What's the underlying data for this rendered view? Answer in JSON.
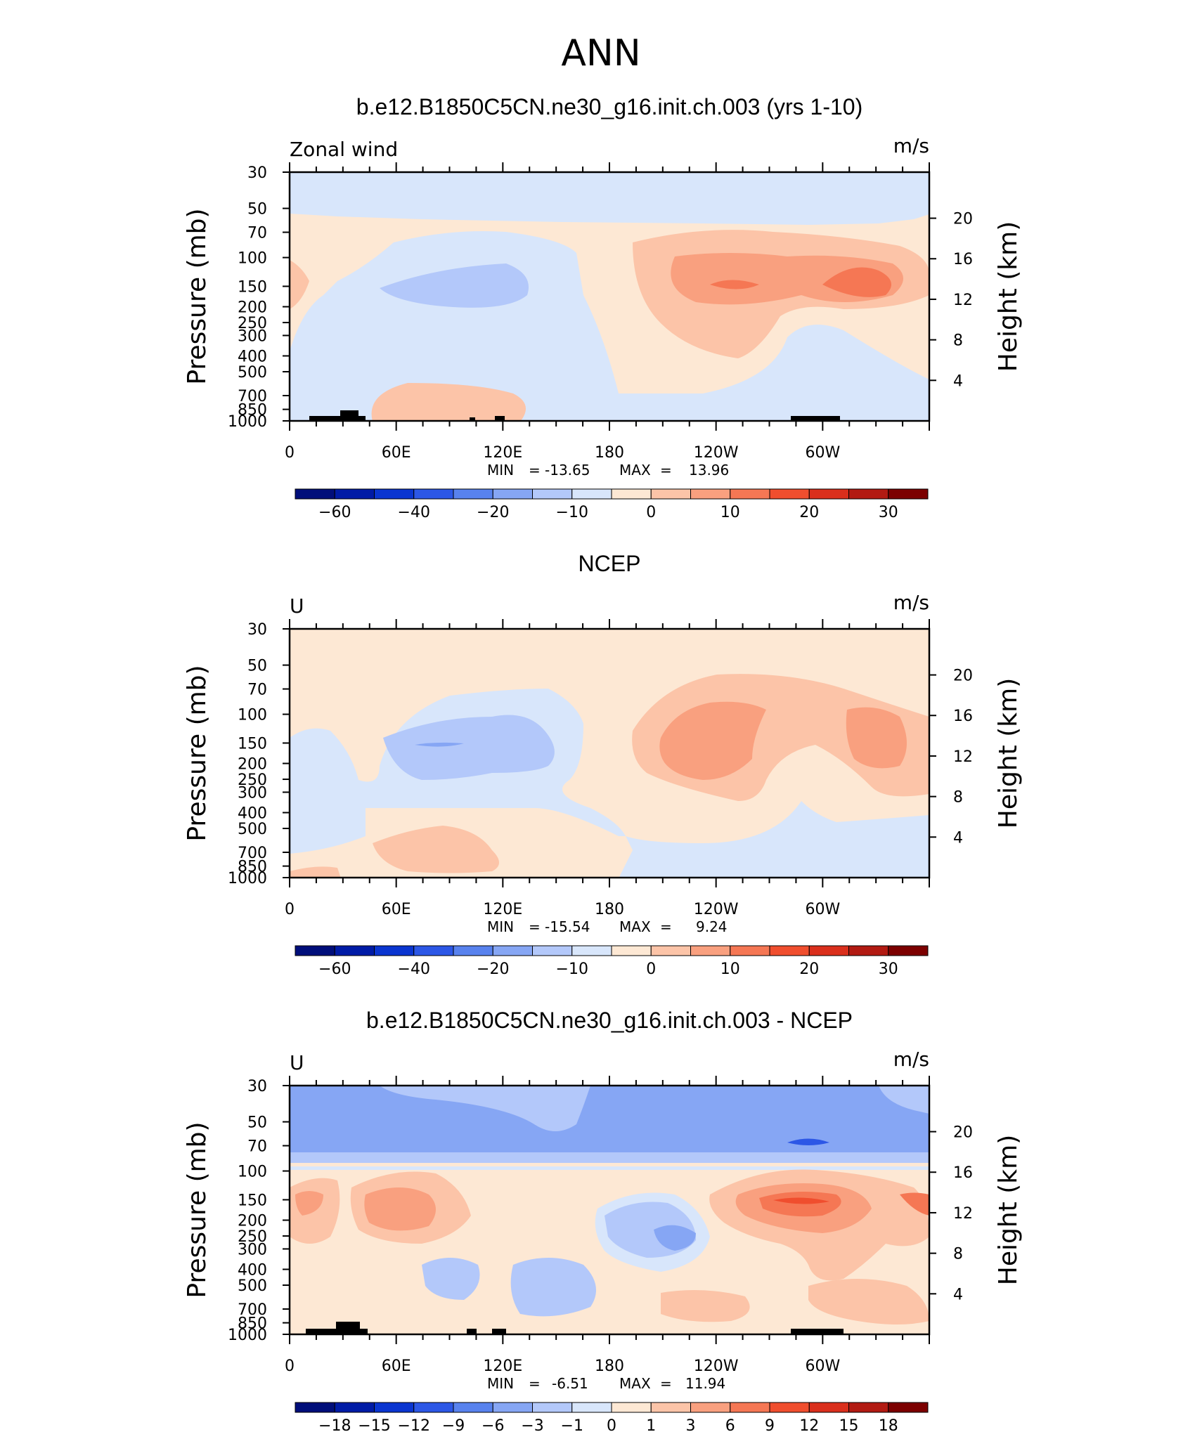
{
  "figure": {
    "title": "ANN"
  },
  "chart_data": [
    {
      "type": "heatmap",
      "title": "b.e12.B1850C5CN.ne30_g16.init.ch.003 (yrs 1-10)",
      "variable_label": "Zonal wind",
      "units": "m/s",
      "ylabel": "Pressure (mb)",
      "y2label": "Height (km)",
      "pressure_levels": [
        30,
        50,
        70,
        100,
        150,
        200,
        250,
        300,
        400,
        500,
        700,
        850,
        1000
      ],
      "ylim": [
        30,
        1000
      ],
      "height_ticks": [
        4,
        8,
        12,
        16,
        20
      ],
      "x_ticks": [
        "0",
        "60E",
        "120E",
        "180",
        "120W",
        "60W"
      ],
      "x_tick_lon": [
        0,
        60,
        120,
        180,
        240,
        300
      ],
      "xlim": [
        0,
        360
      ],
      "min_label": "MIN",
      "min": "-13.65",
      "max_label": "MAX",
      "max": "13.96",
      "colorbar_labels": [
        "-60",
        "-40",
        "-20",
        "-10",
        "0",
        "10",
        "20",
        "30"
      ],
      "colorbar_colors": [
        "#000e7a",
        "#001ba6",
        "#0a35d0",
        "#2c57e6",
        "#5882ee",
        "#86a6f4",
        "#b3c8fa",
        "#d8e6fb",
        "#fde8d4",
        "#fcc4a8",
        "#f9a07f",
        "#f57754",
        "#f04e2e",
        "#da2f1c",
        "#b21a12",
        "#7c0000"
      ],
      "series": [
        {
          "lon": 350,
          "p": 150,
          "value": 2
        },
        {
          "lon": 105,
          "p": 160,
          "value": -5
        },
        {
          "lon": 42,
          "p": 450,
          "value": -2
        },
        {
          "lon": 140,
          "p": 150,
          "value": -2
        },
        {
          "lon": 85,
          "p": 750,
          "value": 3
        },
        {
          "lon": 260,
          "p": 150,
          "value": 8
        },
        {
          "lon": 320,
          "p": 150,
          "value": 10
        },
        {
          "lon": 200,
          "p": 40,
          "value": -2
        }
      ]
    },
    {
      "type": "heatmap",
      "title": "NCEP",
      "variable_label": "U",
      "units": "m/s",
      "ylabel": "Pressure (mb)",
      "y2label": "Height (km)",
      "pressure_levels": [
        30,
        50,
        70,
        100,
        150,
        200,
        250,
        300,
        400,
        500,
        700,
        850,
        1000
      ],
      "ylim": [
        30,
        1000
      ],
      "height_ticks": [
        4,
        8,
        12,
        16,
        20
      ],
      "x_ticks": [
        "0",
        "60E",
        "120E",
        "180",
        "120W",
        "60W"
      ],
      "x_tick_lon": [
        0,
        60,
        120,
        180,
        240,
        300
      ],
      "xlim": [
        0,
        360
      ],
      "min_label": "MIN",
      "min": "-15.54",
      "max_label": "MAX",
      "max": "9.24",
      "colorbar_labels": [
        "-60",
        "-40",
        "-20",
        "-10",
        "0",
        "10",
        "20",
        "30"
      ],
      "colorbar_colors": [
        "#000e7a",
        "#001ba6",
        "#0a35d0",
        "#2c57e6",
        "#5882ee",
        "#86a6f4",
        "#b3c8fa",
        "#d8e6fb",
        "#fde8d4",
        "#fcc4a8",
        "#f9a07f",
        "#f57754",
        "#f04e2e",
        "#da2f1c",
        "#b21a12",
        "#7c0000"
      ],
      "series": [
        {
          "lon": 95,
          "p": 170,
          "value": -6
        },
        {
          "lon": 30,
          "p": 220,
          "value": -2
        },
        {
          "lon": 260,
          "p": 160,
          "value": 6
        },
        {
          "lon": 340,
          "p": 150,
          "value": 6
        },
        {
          "lon": 90,
          "p": 750,
          "value": 3
        },
        {
          "lon": 260,
          "p": 820,
          "value": -2
        }
      ]
    },
    {
      "type": "heatmap",
      "title": "b.e12.B1850C5CN.ne30_g16.init.ch.003 - NCEP",
      "variable_label": "U",
      "units": "m/s",
      "ylabel": "Pressure (mb)",
      "y2label": "Height (km)",
      "pressure_levels": [
        30,
        50,
        70,
        100,
        150,
        200,
        250,
        300,
        400,
        500,
        700,
        850,
        1000
      ],
      "ylim": [
        30,
        1000
      ],
      "height_ticks": [
        4,
        8,
        12,
        16,
        20
      ],
      "x_ticks": [
        "0",
        "60E",
        "120E",
        "180",
        "120W",
        "60W"
      ],
      "x_tick_lon": [
        0,
        60,
        120,
        180,
        240,
        300
      ],
      "xlim": [
        0,
        360
      ],
      "min_label": "MIN",
      "min": "-6.51",
      "max_label": "MAX",
      "max": "11.94",
      "colorbar_labels": [
        "-18",
        "-15",
        "-12",
        "-9",
        "-6",
        "-3",
        "-1",
        "0",
        "1",
        "3",
        "6",
        "9",
        "12",
        "15",
        "18"
      ],
      "colorbar_colors": [
        "#000e7a",
        "#001ba6",
        "#0a35d0",
        "#2c57e6",
        "#5882ee",
        "#86a6f4",
        "#b3c8fa",
        "#d8e6fb",
        "#fde8d4",
        "#fcc4a8",
        "#f9a07f",
        "#f57754",
        "#f04e2e",
        "#da2f1c",
        "#b21a12",
        "#7c0000"
      ],
      "series": [
        {
          "lon": 180,
          "p": 50,
          "value": -5
        },
        {
          "lon": 290,
          "p": 70,
          "value": -7
        },
        {
          "lon": 10,
          "p": 150,
          "value": 5
        },
        {
          "lon": 60,
          "p": 160,
          "value": 4
        },
        {
          "lon": 215,
          "p": 220,
          "value": -4
        },
        {
          "lon": 290,
          "p": 150,
          "value": 8
        },
        {
          "lon": 350,
          "p": 150,
          "value": 4
        },
        {
          "lon": 85,
          "p": 500,
          "value": -3
        },
        {
          "lon": 160,
          "p": 600,
          "value": -3
        },
        {
          "lon": 40,
          "p": 400,
          "value": 2
        }
      ]
    }
  ]
}
